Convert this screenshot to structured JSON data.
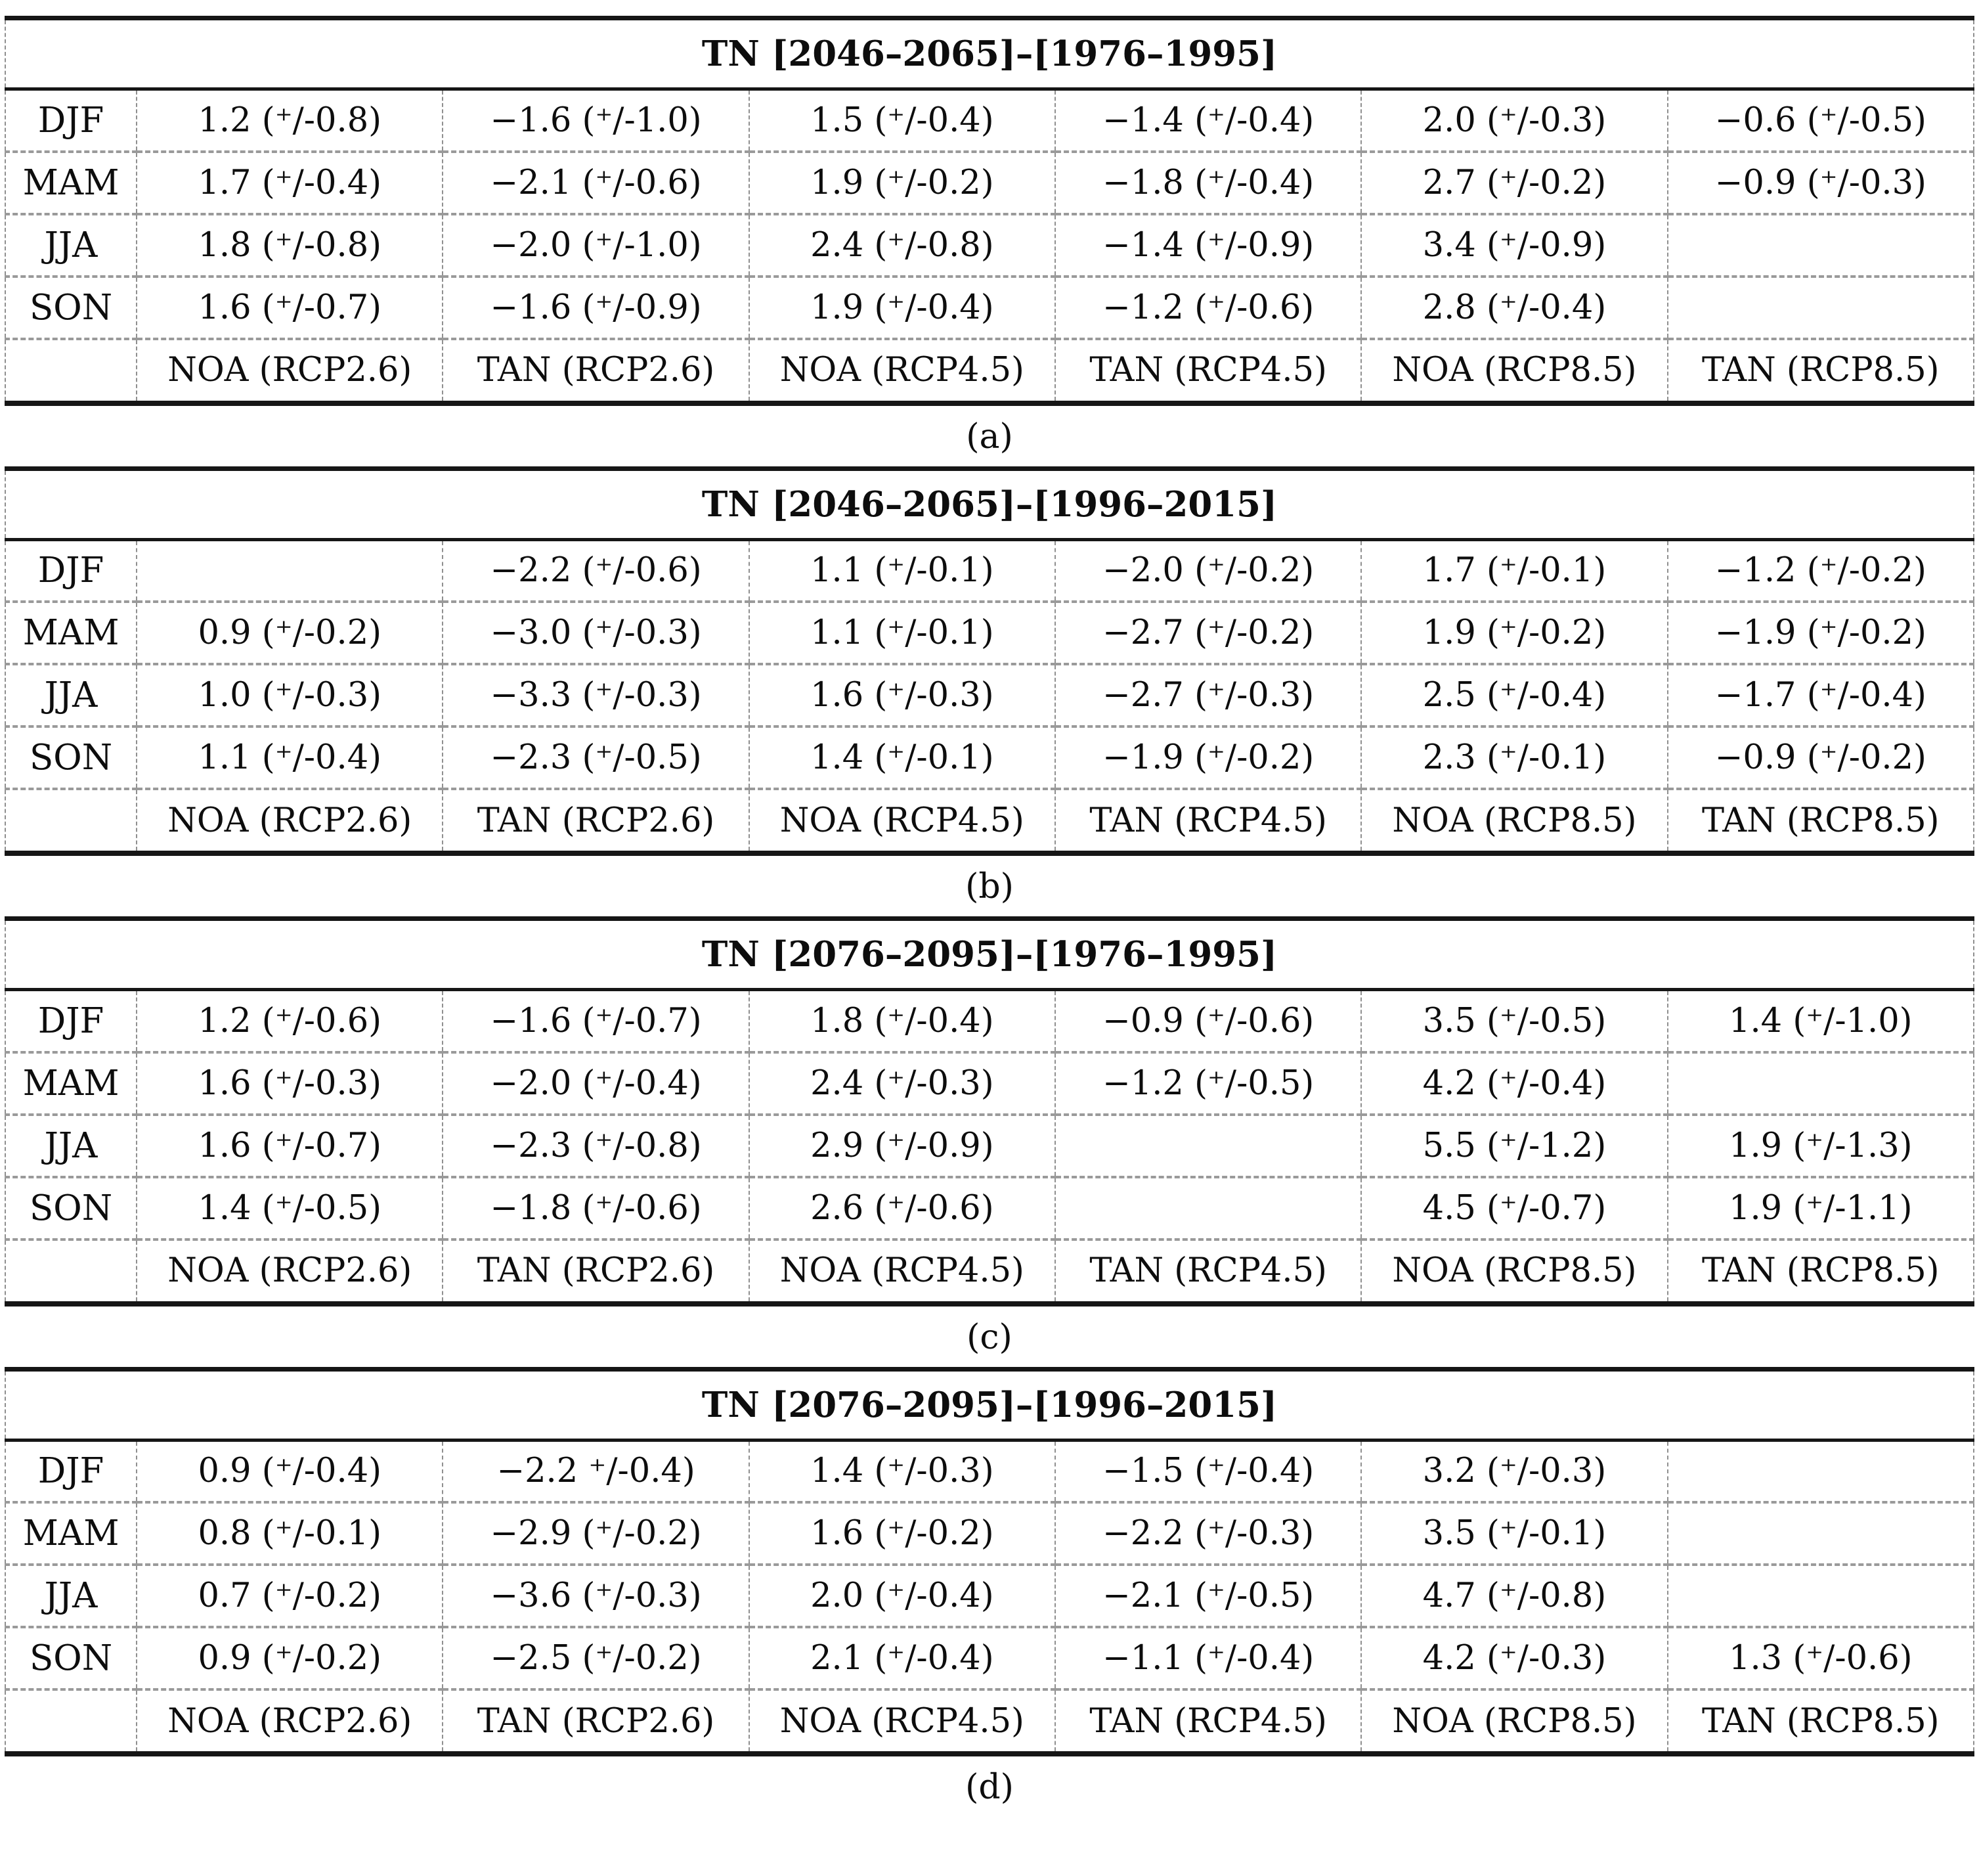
{
  "tables": [
    {
      "label": "(a)",
      "title": "TN [2046–2065]–[1976–1995]",
      "columns": [
        "NOA (RCP2.6)",
        "TAN (RCP2.6)",
        "NOA (RCP4.5)",
        "TAN (RCP4.5)",
        "NOA (RCP8.5)",
        "TAN (RCP8.5)"
      ],
      "rows": [
        {
          "season": "DJF",
          "cells": [
            "1.2 (⁺/-0.8)",
            "−1.6 (⁺/-1.0)",
            "1.5 (⁺/-0.4)",
            "−1.4 (⁺/-0.4)",
            "2.0 (⁺/-0.3)",
            "−0.6 (⁺/-0.5)"
          ]
        },
        {
          "season": "MAM",
          "cells": [
            "1.7 (⁺/-0.4)",
            "−2.1 (⁺/-0.6)",
            "1.9 (⁺/-0.2)",
            "−1.8 (⁺/-0.4)",
            "2.7 (⁺/-0.2)",
            "−0.9 (⁺/-0.3)"
          ]
        },
        {
          "season": "JJA",
          "cells": [
            "1.8 (⁺/-0.8)",
            "−2.0 (⁺/-1.0)",
            "2.4 (⁺/-0.8)",
            "−1.4 (⁺/-0.9)",
            "3.4 (⁺/-0.9)",
            ""
          ]
        },
        {
          "season": "SON",
          "cells": [
            "1.6 (⁺/-0.7)",
            "−1.6 (⁺/-0.9)",
            "1.9 (⁺/-0.4)",
            "−1.2 (⁺/-0.6)",
            "2.8 (⁺/-0.4)",
            ""
          ]
        }
      ]
    },
    {
      "label": "(b)",
      "title": "TN [2046–2065]–[1996–2015]",
      "columns": [
        "NOA (RCP2.6)",
        "TAN (RCP2.6)",
        "NOA (RCP4.5)",
        "TAN (RCP4.5)",
        "NOA (RCP8.5)",
        "TAN (RCP8.5)"
      ],
      "rows": [
        {
          "season": "DJF",
          "cells": [
            "",
            "−2.2 (⁺/-0.6)",
            "1.1 (⁺/-0.1)",
            "−2.0 (⁺/-0.2)",
            "1.7 (⁺/-0.1)",
            "−1.2 (⁺/-0.2)"
          ]
        },
        {
          "season": "MAM",
          "cells": [
            "0.9 (⁺/-0.2)",
            "−3.0 (⁺/-0.3)",
            "1.1 (⁺/-0.1)",
            "−2.7 (⁺/-0.2)",
            "1.9 (⁺/-0.2)",
            "−1.9 (⁺/-0.2)"
          ]
        },
        {
          "season": "JJA",
          "cells": [
            "1.0 (⁺/-0.3)",
            "−3.3 (⁺/-0.3)",
            "1.6 (⁺/-0.3)",
            "−2.7 (⁺/-0.3)",
            "2.5 (⁺/-0.4)",
            "−1.7 (⁺/-0.4)"
          ]
        },
        {
          "season": "SON",
          "cells": [
            "1.1 (⁺/-0.4)",
            "−2.3 (⁺/-0.5)",
            "1.4 (⁺/-0.1)",
            "−1.9 (⁺/-0.2)",
            "2.3 (⁺/-0.1)",
            "−0.9 (⁺/-0.2)"
          ]
        }
      ]
    },
    {
      "label": "(c)",
      "title": "TN [2076–2095]–[1976–1995]",
      "columns": [
        "NOA (RCP2.6)",
        "TAN (RCP2.6)",
        "NOA (RCP4.5)",
        "TAN (RCP4.5)",
        "NOA (RCP8.5)",
        "TAN (RCP8.5)"
      ],
      "rows": [
        {
          "season": "DJF",
          "cells": [
            "1.2 (⁺/-0.6)",
            "−1.6 (⁺/-0.7)",
            "1.8 (⁺/-0.4)",
            "−0.9 (⁺/-0.6)",
            "3.5 (⁺/-0.5)",
            "1.4 (⁺/-1.0)"
          ]
        },
        {
          "season": "MAM",
          "cells": [
            "1.6 (⁺/-0.3)",
            "−2.0 (⁺/-0.4)",
            "2.4 (⁺/-0.3)",
            "−1.2 (⁺/-0.5)",
            "4.2 (⁺/-0.4)",
            ""
          ]
        },
        {
          "season": "JJA",
          "cells": [
            "1.6 (⁺/-0.7)",
            "−2.3 (⁺/-0.8)",
            "2.9 (⁺/-0.9)",
            "",
            "5.5 (⁺/-1.2)",
            "1.9 (⁺/-1.3)"
          ]
        },
        {
          "season": "SON",
          "cells": [
            "1.4 (⁺/-0.5)",
            "−1.8 (⁺/-0.6)",
            "2.6 (⁺/-0.6)",
            "",
            "4.5 (⁺/-0.7)",
            "1.9 (⁺/-1.1)"
          ]
        }
      ]
    },
    {
      "label": "(d)",
      "title": "TN [2076–2095]–[1996–2015]",
      "columns": [
        "NOA (RCP2.6)",
        "TAN (RCP2.6)",
        "NOA (RCP4.5)",
        "TAN (RCP4.5)",
        "NOA (RCP8.5)",
        "TAN (RCP8.5)"
      ],
      "rows": [
        {
          "season": "DJF",
          "cells": [
            "0.9 (⁺/-0.4)",
            "−2.2 ⁺/-0.4)",
            "1.4 (⁺/-0.3)",
            "−1.5 (⁺/-0.4)",
            "3.2 (⁺/-0.3)",
            ""
          ]
        },
        {
          "season": "MAM",
          "cells": [
            "0.8 (⁺/-0.1)",
            "−2.9 (⁺/-0.2)",
            "1.6 (⁺/-0.2)",
            "−2.2 (⁺/-0.3)",
            "3.5 (⁺/-0.1)",
            ""
          ]
        },
        {
          "season": "JJA",
          "cells": [
            "0.7 (⁺/-0.2)",
            "−3.6 (⁺/-0.3)",
            "2.0 (⁺/-0.4)",
            "−2.1 (⁺/-0.5)",
            "4.7 (⁺/-0.8)",
            ""
          ]
        },
        {
          "season": "SON",
          "cells": [
            "0.9 (⁺/-0.2)",
            "−2.5 (⁺/-0.2)",
            "2.1 (⁺/-0.4)",
            "−1.1 (⁺/-0.4)",
            "4.2 (⁺/-0.3)",
            "1.3 (⁺/-0.6)"
          ]
        }
      ]
    }
  ]
}
